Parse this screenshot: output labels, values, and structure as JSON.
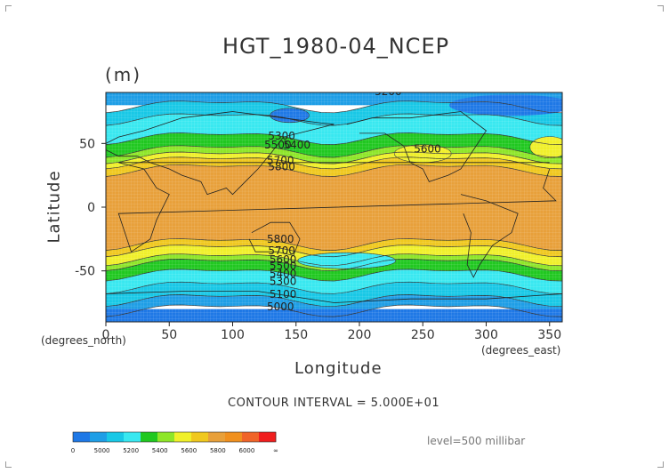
{
  "chart_data": {
    "type": "heatmap",
    "title": "HGT_1980-04_NCEP",
    "units": "(m)",
    "xlabel": "Longitude",
    "ylabel": "Latitude",
    "x_unit_label": "(degrees_east)",
    "y_unit_label": "(degrees_north)",
    "xlim": [
      0,
      360
    ],
    "ylim": [
      -90,
      90
    ],
    "x_ticks": [
      "0",
      "50",
      "100",
      "150",
      "200",
      "250",
      "300",
      "350"
    ],
    "x_tick_values": [
      0,
      50,
      100,
      150,
      200,
      250,
      300,
      350
    ],
    "y_ticks": [
      "50",
      "0",
      "-50"
    ],
    "y_tick_values": [
      50,
      0,
      -50
    ],
    "contour_labels": [
      {
        "text": "5200",
        "lon": 212,
        "lat": 88
      },
      {
        "text": "5300",
        "lon": 128,
        "lat": 53
      },
      {
        "text": "5500",
        "lon": 125,
        "lat": 46
      },
      {
        "text": "5400",
        "lon": 140,
        "lat": 46
      },
      {
        "text": "5600",
        "lon": 243,
        "lat": 43
      },
      {
        "text": "5700",
        "lon": 127,
        "lat": 34
      },
      {
        "text": "5800",
        "lon": 128,
        "lat": 29
      },
      {
        "text": "5800",
        "lon": 127,
        "lat": -28
      },
      {
        "text": "5700",
        "lon": 128,
        "lat": -37
      },
      {
        "text": "5600",
        "lon": 129,
        "lat": -44
      },
      {
        "text": "5500",
        "lon": 129,
        "lat": -49
      },
      {
        "text": "5400",
        "lon": 129,
        "lat": -55
      },
      {
        "text": "5300",
        "lon": 129,
        "lat": -61
      },
      {
        "text": "5100",
        "lon": 129,
        "lat": -71
      },
      {
        "text": "5000",
        "lon": 127,
        "lat": -81
      }
    ],
    "contour_interval_text": "CONTOUR INTERVAL = 5.000E+01",
    "level_text": "level=500 millibar",
    "colorbar": {
      "labels": [
        "0",
        "5000",
        "5200",
        "5400",
        "5600",
        "5800",
        "6000",
        "∞"
      ],
      "bins": [
        {
          "color": "#1e78e6"
        },
        {
          "color": "#1e9ee6"
        },
        {
          "color": "#18c8e6"
        },
        {
          "color": "#38e8f0"
        },
        {
          "color": "#20c820"
        },
        {
          "color": "#8ee628"
        },
        {
          "color": "#f0f02a"
        },
        {
          "color": "#f0c81e"
        },
        {
          "color": "#e8a03a"
        },
        {
          "color": "#f0901e"
        },
        {
          "color": "#f06428"
        },
        {
          "color": "#f01e1e"
        }
      ]
    },
    "bands": [
      {
        "from": 90,
        "to": 80,
        "color": "#1e9ee6"
      },
      {
        "from": 80,
        "to": 70,
        "color": "#18c8e6"
      },
      {
        "from": 70,
        "to": 55,
        "color": "#38e8f0"
      },
      {
        "from": 55,
        "to": 45,
        "color": "#20c820"
      },
      {
        "from": 45,
        "to": 40,
        "color": "#8ee628"
      },
      {
        "from": 40,
        "to": 36,
        "color": "#f0f02a"
      },
      {
        "from": 36,
        "to": 30,
        "color": "#f0c81e"
      },
      {
        "from": 30,
        "to": -28,
        "color": "#e8a03a"
      },
      {
        "from": -28,
        "to": -33,
        "color": "#f0c81e"
      },
      {
        "from": -33,
        "to": -40,
        "color": "#f0f02a"
      },
      {
        "from": -40,
        "to": -44,
        "color": "#8ee628"
      },
      {
        "from": -44,
        "to": -52,
        "color": "#20c820"
      },
      {
        "from": -52,
        "to": -62,
        "color": "#38e8f0"
      },
      {
        "from": -62,
        "to": -72,
        "color": "#18c8e6"
      },
      {
        "from": -72,
        "to": -80,
        "color": "#1e9ee6"
      },
      {
        "from": -80,
        "to": -90,
        "color": "#1e78e6"
      }
    ]
  }
}
